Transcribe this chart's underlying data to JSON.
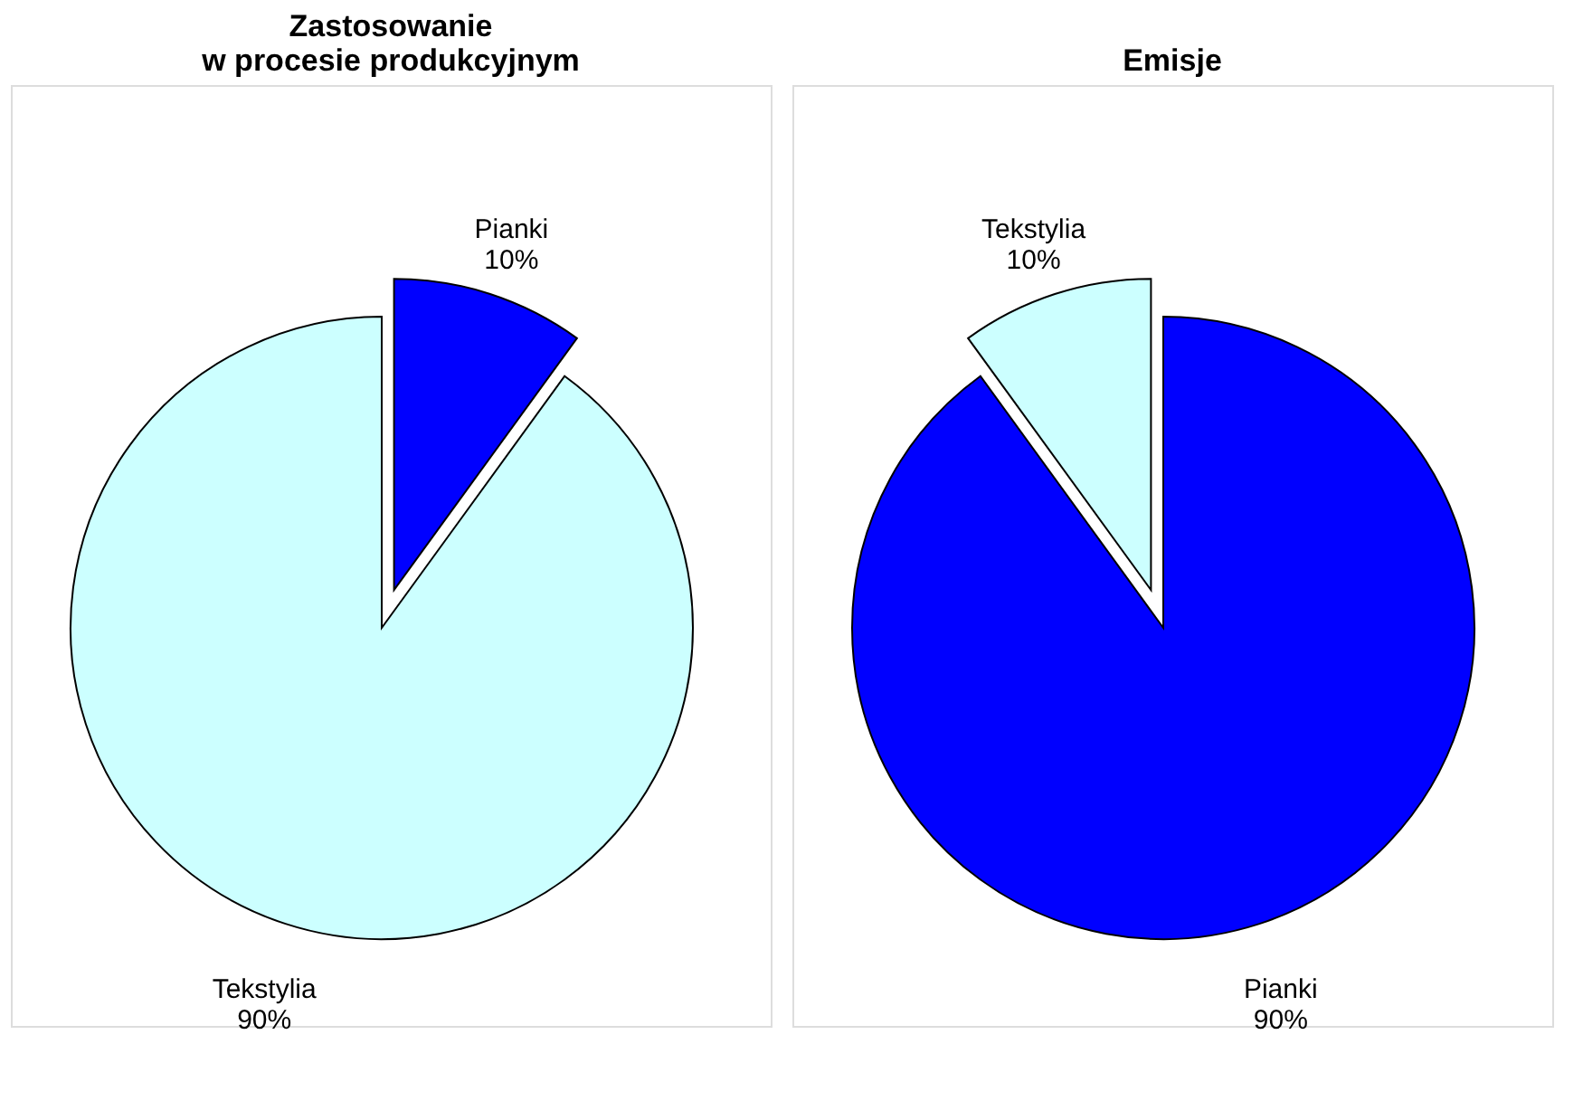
{
  "chart_data": [
    {
      "type": "pie",
      "title": "Zastosowanie\nw procesie produkcyjnym",
      "categories": [
        "Pianki",
        "Tekstylia"
      ],
      "values": [
        10,
        90
      ],
      "colors": [
        "#0000ff",
        "#ccffff"
      ],
      "value_labels": [
        "10%",
        "90%"
      ]
    },
    {
      "type": "pie",
      "title": "Emisje",
      "categories": [
        "Pianki",
        "Tekstylia"
      ],
      "values": [
        90,
        10
      ],
      "colors": [
        "#0000ff",
        "#ccffff"
      ],
      "value_labels": [
        "90%",
        "10%"
      ]
    }
  ]
}
